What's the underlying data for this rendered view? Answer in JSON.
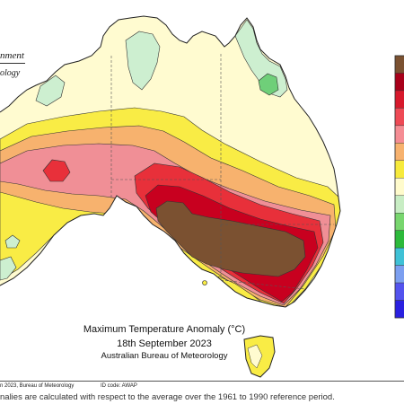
{
  "header": {
    "gov_line1": "nment",
    "gov_line2": "ology"
  },
  "map": {
    "title": "Maximum Temperature Anomaly (°C)",
    "date": "18th September 2023",
    "organisation": "Australian Bureau of Meteorology"
  },
  "footer": {
    "copyright": "n 2023, Bureau of Meteorology",
    "id_code": "ID code: AWAP",
    "footnote": "nalies are calculated with respect to the average over the 1961 to 1990 reference period."
  },
  "legend": {
    "colors": [
      "#7b5131",
      "#a8001a",
      "#d7192c",
      "#ee4a55",
      "#f58d94",
      "#f7b26e",
      "#f7ea3c",
      "#fffbcc",
      "#c8edc4",
      "#78d66e",
      "#2dba3b",
      "#3fc1d6",
      "#7c9ff0",
      "#5353ee",
      "#2a20e0"
    ]
  },
  "palette": {
    "ocean": "#ffffff",
    "very_hot": "#7b5131",
    "dark_red": "#c8001f",
    "red": "#e8303a",
    "pink": "#f08f96",
    "orange": "#f7b26e",
    "yellow": "#f9ec45",
    "pale_yellow": "#fffbd0",
    "light_green": "#cdefd0",
    "green": "#6fcf79"
  }
}
